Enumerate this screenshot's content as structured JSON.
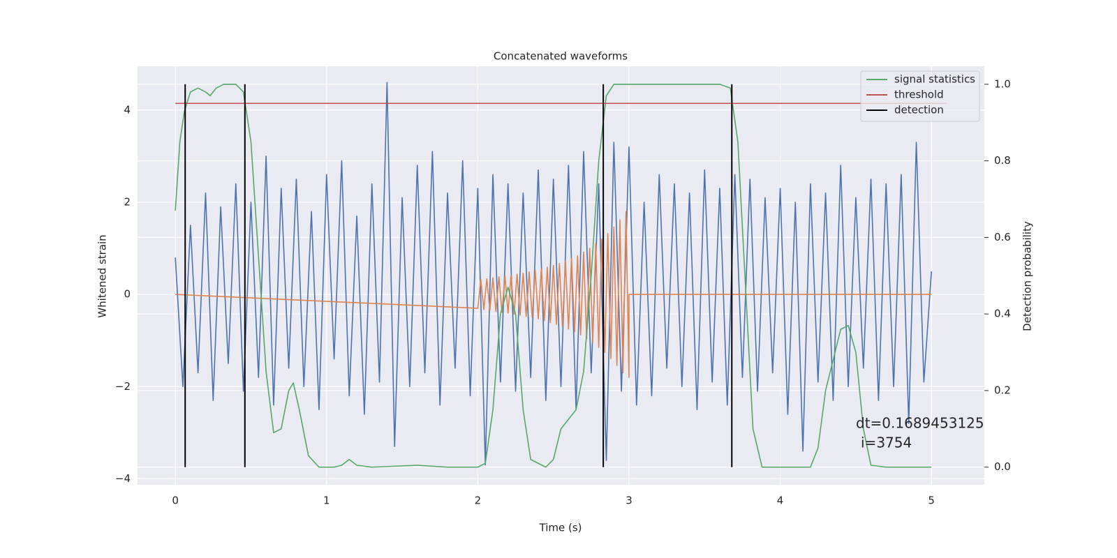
{
  "chart_data": {
    "type": "line",
    "title": "Concatenated waveforms",
    "xlabel": "Time (s)",
    "ylabel": "Whitened strain",
    "y2label": "Detection probability",
    "xlim": [
      -0.25,
      5.35
    ],
    "ylim": [
      -4.13,
      4.95
    ],
    "y2lim": [
      -0.046,
      1.047
    ],
    "xticks": [
      0,
      1,
      2,
      3,
      4,
      5
    ],
    "yticks": [
      {
        "value": -4,
        "label": "−4"
      },
      {
        "value": -2,
        "label": "−2"
      },
      0,
      2,
      4
    ],
    "y2ticks": [
      {
        "value": 0,
        "label": "0.0"
      },
      0.2,
      0.4,
      0.6,
      0.8,
      {
        "value": 1,
        "label": "1.0"
      }
    ],
    "grid": true,
    "legend": "upper right",
    "series": [
      {
        "color": "#4c72b0",
        "x": [
          0,
          0.05,
          0.1,
          0.15,
          0.2,
          0.25,
          0.3,
          0.35,
          0.4,
          0.45,
          0.5,
          0.55,
          0.6,
          0.65,
          0.7,
          0.75,
          0.8,
          0.85,
          0.9,
          0.95,
          1,
          1.05,
          1.1,
          1.15,
          1.2,
          1.25,
          1.3,
          1.35,
          1.4,
          1.45,
          1.5,
          1.55,
          1.6,
          1.65,
          1.7,
          1.75,
          1.8,
          1.85,
          1.9,
          1.95,
          2,
          2.05,
          2.1,
          2.15,
          2.2,
          2.25,
          2.3,
          2.35,
          2.4,
          2.45,
          2.5,
          2.55,
          2.6,
          2.65,
          2.7,
          2.75,
          2.8,
          2.85,
          2.9,
          2.95,
          3,
          3.05,
          3.1,
          3.15,
          3.2,
          3.25,
          3.3,
          3.35,
          3.4,
          3.45,
          3.5,
          3.55,
          3.6,
          3.65,
          3.7,
          3.75,
          3.8,
          3.85,
          3.9,
          3.95,
          4,
          4.05,
          4.1,
          4.15,
          4.2,
          4.25,
          4.3,
          4.35,
          4.4,
          4.45,
          4.5,
          4.55,
          4.6,
          4.65,
          4.7,
          4.75,
          4.8,
          4.85,
          4.9,
          4.95,
          5
        ],
        "values": [
          0.8,
          -2.0,
          1.5,
          -1.7,
          2.2,
          -2.3,
          1.9,
          -1.5,
          2.4,
          -2.1,
          2.0,
          -1.8,
          3.0,
          -2.4,
          2.3,
          -1.6,
          2.5,
          -2.0,
          1.8,
          -2.5,
          2.6,
          -1.4,
          2.9,
          -2.2,
          1.7,
          -2.6,
          2.4,
          -1.9,
          4.6,
          -3.3,
          2.1,
          -2.0,
          2.8,
          -1.7,
          3.1,
          -2.4,
          2.2,
          -1.6,
          2.9,
          -2.2,
          2.3,
          -3.7,
          2.6,
          -1.9,
          2.4,
          -2.1,
          2.2,
          -1.8,
          2.7,
          -2.3,
          2.5,
          -2.0,
          2.8,
          -2.5,
          3.1,
          -1.7,
          2.4,
          -3.6,
          3.3,
          -2.1,
          3.2,
          -2.4,
          2.0,
          -2.2,
          2.6,
          -1.6,
          2.4,
          -2.0,
          2.2,
          -2.5,
          2.7,
          -1.9,
          2.3,
          -2.4,
          2.6,
          -1.8,
          2.5,
          -2.1,
          2.1,
          -1.7,
          2.3,
          -2.6,
          2.0,
          -3.4,
          2.4,
          -1.9,
          2.2,
          -2.3,
          2.8,
          -2.0,
          2.1,
          -1.6,
          2.5,
          -2.3,
          2.4,
          -2.0,
          2.6,
          -2.8,
          3.3,
          -1.9,
          0.5
        ]
      },
      {
        "color": "#dd8452",
        "x": [
          0,
          2,
          2.02,
          2.04,
          2.06,
          2.08,
          2.1,
          2.12,
          2.14,
          2.16,
          2.18,
          2.2,
          2.22,
          2.24,
          2.26,
          2.28,
          2.3,
          2.32,
          2.34,
          2.36,
          2.38,
          2.4,
          2.42,
          2.44,
          2.46,
          2.48,
          2.5,
          2.52,
          2.54,
          2.56,
          2.58,
          2.6,
          2.62,
          2.64,
          2.66,
          2.68,
          2.7,
          2.72,
          2.74,
          2.76,
          2.78,
          2.8,
          2.82,
          2.84,
          2.86,
          2.88,
          2.9,
          2.92,
          2.94,
          2.96,
          2.98,
          3,
          3,
          5
        ],
        "values": [
          0,
          -0.3,
          0.32,
          -0.33,
          0.34,
          -0.35,
          0.36,
          -0.37,
          0.38,
          -0.39,
          0.4,
          -0.41,
          0.42,
          -0.43,
          0.44,
          -0.45,
          0.46,
          -0.48,
          0.49,
          -0.5,
          0.52,
          -0.53,
          0.55,
          -0.57,
          0.59,
          -0.61,
          0.63,
          -0.65,
          0.67,
          -0.7,
          0.72,
          -0.75,
          0.78,
          -0.81,
          0.84,
          -0.88,
          0.92,
          -0.96,
          1.0,
          -1.05,
          1.1,
          -1.15,
          1.2,
          -1.26,
          1.32,
          -1.39,
          1.46,
          -1.54,
          1.62,
          -1.7,
          1.8,
          -1.8,
          0,
          0
        ]
      },
      {
        "name": "signal statistics",
        "color": "#55a868",
        "axis": "y2",
        "x": [
          0,
          0.03,
          0.06,
          0.1,
          0.15,
          0.2,
          0.23,
          0.27,
          0.32,
          0.4,
          0.45,
          0.5,
          0.55,
          0.6,
          0.65,
          0.7,
          0.75,
          0.78,
          0.82,
          0.88,
          0.95,
          1.05,
          1.1,
          1.15,
          1.2,
          1.3,
          1.6,
          1.8,
          2.0,
          2.05,
          2.1,
          2.15,
          2.2,
          2.25,
          2.3,
          2.35,
          2.45,
          2.5,
          2.55,
          2.65,
          2.7,
          2.75,
          2.8,
          2.85,
          2.9,
          3.2,
          3.6,
          3.67,
          3.72,
          3.78,
          3.82,
          3.88,
          4.2,
          4.25,
          4.3,
          4.4,
          4.45,
          4.5,
          4.55,
          4.6,
          4.7,
          5.0
        ],
        "values": [
          0.67,
          0.85,
          0.93,
          0.98,
          0.99,
          0.98,
          0.97,
          0.99,
          1.0,
          1.0,
          0.98,
          0.85,
          0.55,
          0.25,
          0.09,
          0.1,
          0.2,
          0.22,
          0.15,
          0.03,
          0.0,
          0.0,
          0.005,
          0.02,
          0.005,
          0.0,
          0.005,
          0.0,
          0.0,
          0.01,
          0.15,
          0.4,
          0.47,
          0.4,
          0.15,
          0.02,
          0.0,
          0.02,
          0.1,
          0.15,
          0.25,
          0.5,
          0.8,
          0.97,
          1.0,
          1.0,
          1.0,
          0.99,
          0.85,
          0.4,
          0.1,
          0.0,
          0.0,
          0.05,
          0.2,
          0.36,
          0.37,
          0.3,
          0.1,
          0.005,
          0.0,
          0.0
        ]
      },
      {
        "name": "threshold",
        "color": "#c44e52",
        "axis": "y2",
        "x": [
          0,
          5.1
        ],
        "values": [
          0.95,
          0.95
        ]
      }
    ],
    "vlines": {
      "name": "detection",
      "color": "#000000",
      "axis": "y2",
      "x": [
        0.065,
        0.46,
        2.83,
        3.68
      ],
      "ymin": 0,
      "ymax": 1
    },
    "annotation": [
      "dt=0.1689453125",
      "i=3754"
    ]
  }
}
